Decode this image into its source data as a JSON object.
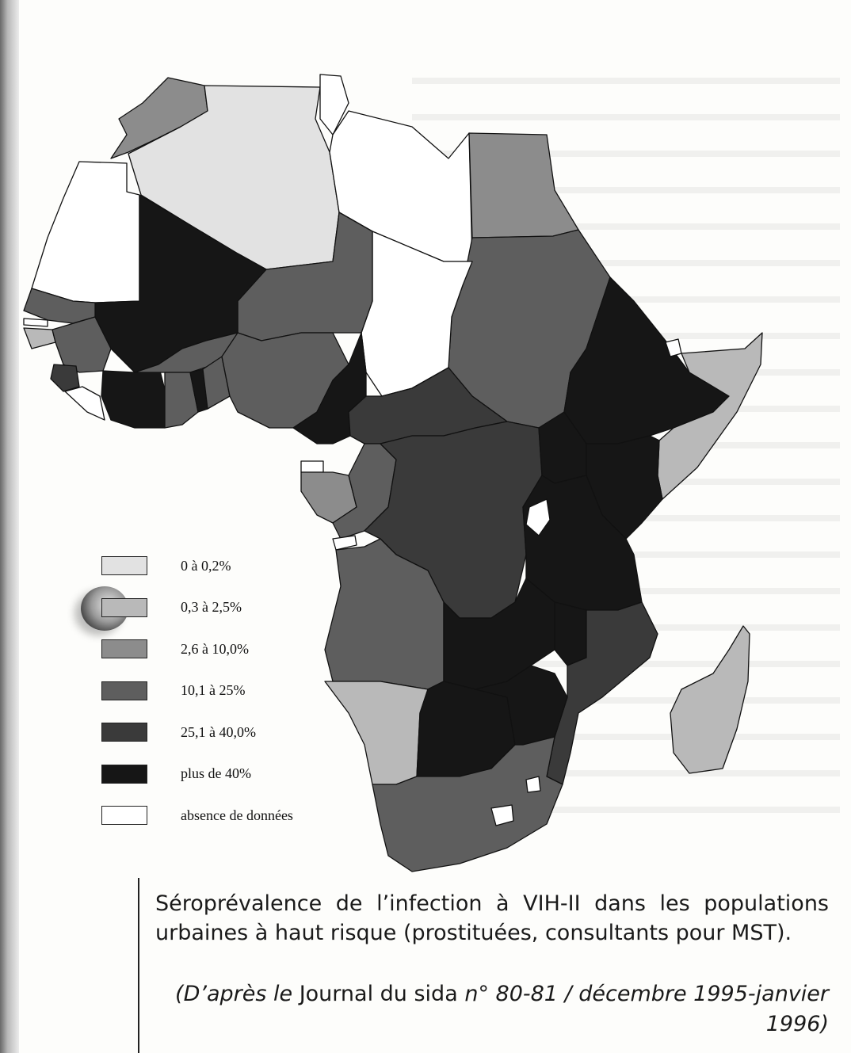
{
  "colors": {
    "cls0": "#e2e2e2",
    "cls1": "#b9b9b9",
    "cls2": "#8c8c8c",
    "cls3": "#5e5e5e",
    "cls4": "#3a3a3a",
    "cls5": "#161616",
    "nodata": "#ffffff"
  },
  "legend": [
    {
      "label": "0 à 0,2%",
      "class": "cls0"
    },
    {
      "label": "0,3 à 2,5%",
      "class": "cls1"
    },
    {
      "label": "2,6 à 10,0%",
      "class": "cls2"
    },
    {
      "label": "10,1 à 25%",
      "class": "cls3"
    },
    {
      "label": "25,1 à 40,0%",
      "class": "cls4"
    },
    {
      "label": "plus de 40%",
      "class": "cls5"
    },
    {
      "label": "absence de données",
      "class": "nodata"
    }
  ],
  "caption": {
    "text": "Séroprévalence de l’infection à VIH-II dans les populations urbaines à haut risque (prostituées, consultants pour MST).",
    "source_prefix": "(D’après le ",
    "source_journal": "Journal du sida",
    "source_suffix": " n° 80-81 / décembre 1995-janvier 1996)"
  }
}
